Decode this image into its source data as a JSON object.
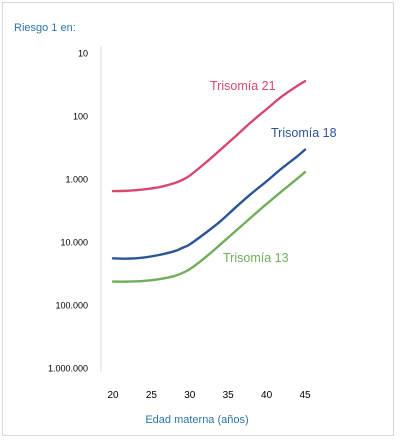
{
  "chart_data": {
    "type": "line",
    "title": "",
    "ylabel": "Riesgo 1 en:",
    "xlabel": "Edad materna (años)",
    "y_scale": "log",
    "y_inverted": true,
    "ylim": [
      10,
      1000000
    ],
    "xlim": [
      19,
      46
    ],
    "x_ticks": [
      20,
      25,
      30,
      35,
      40,
      45
    ],
    "y_ticks": [
      {
        "value": 10,
        "label": "10"
      },
      {
        "value": 100,
        "label": "100"
      },
      {
        "value": 1000,
        "label": "1.000"
      },
      {
        "value": 10000,
        "label": "10.000"
      },
      {
        "value": 100000,
        "label": "100.000"
      },
      {
        "value": 1000000,
        "label": "1.000.000"
      }
    ],
    "grid": false,
    "series": [
      {
        "name": "Trisomía 21",
        "color": "#d6496f",
        "x": [
          20,
          22,
          24,
          26,
          28,
          29,
          30,
          32,
          34,
          36,
          38,
          40,
          42,
          44,
          45
        ],
        "y": [
          1500,
          1480,
          1410,
          1300,
          1120,
          1000,
          850,
          540,
          330,
          200,
          120,
          75,
          47,
          32,
          27
        ]
      },
      {
        "name": "Trisomía 18",
        "color": "#2b5597",
        "x": [
          20,
          22,
          24,
          26,
          28,
          29,
          30,
          32,
          34,
          36,
          38,
          40,
          42,
          44,
          45
        ],
        "y": [
          17500,
          17700,
          17000,
          15500,
          13500,
          12000,
          10500,
          7000,
          4500,
          2700,
          1650,
          1050,
          650,
          420,
          330
        ]
      },
      {
        "name": "Trisomía 13",
        "color": "#70ad5c",
        "x": [
          20,
          22,
          24,
          26,
          28,
          29,
          30,
          32,
          34,
          36,
          38,
          40,
          42,
          44,
          45
        ],
        "y": [
          41000,
          41000,
          40000,
          37500,
          33500,
          30000,
          26000,
          17000,
          10500,
          6400,
          3900,
          2400,
          1500,
          950,
          750
        ]
      }
    ]
  },
  "colors": {
    "axis_label": "#2e74a8",
    "axis_line": "#d9d9d9",
    "frame": "#d9d9d9"
  }
}
